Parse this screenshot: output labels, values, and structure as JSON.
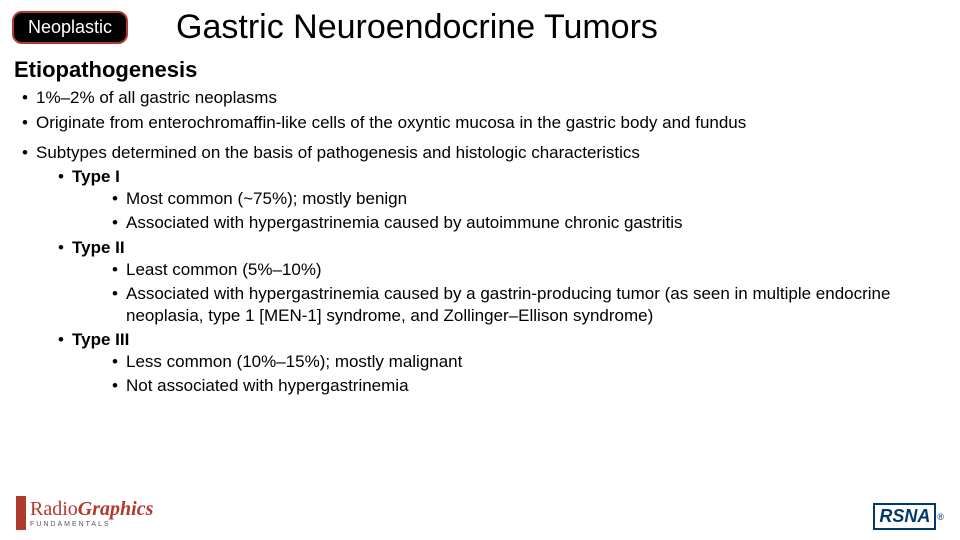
{
  "badge": {
    "text": "Neoplastic",
    "bg": "#000000",
    "border": "#b03a2e",
    "color": "#ffffff"
  },
  "title": "Gastric Neuroendocrine Tumors",
  "section_heading": "Etiopathogenesis",
  "bullets": {
    "b1": "1%–2% of all gastric neoplasms",
    "b2": "Originate from enterochromaffin-like cells of the oxyntic mucosa in the gastric body and fundus",
    "b3": "Subtypes determined on the basis of pathogenesis and histologic characteristics",
    "type1_label": "Type I",
    "type1_a": "Most common (~75%); mostly benign",
    "type1_b": "Associated with hypergastrinemia caused by autoimmune chronic gastritis",
    "type2_label": "Type II",
    "type2_a": "Least common (5%–10%)",
    "type2_b": "Associated with hypergastrinemia caused by a gastrin-producing tumor (as seen in multiple endocrine neoplasia, type 1 [MEN-1] syndrome, and Zollinger–Ellison syndrome)",
    "type3_label": "Type III",
    "type3_a": "Less common (10%–15%); mostly malignant",
    "type3_b": "Not associated with hypergastrinemia"
  },
  "logos": {
    "left_line1a": "Radio",
    "left_line1b": "Graphics",
    "left_sub": "FUNDAMENTALS",
    "right": "RSNA"
  },
  "styling": {
    "title_fontsize": 34,
    "heading_fontsize": 22,
    "body_fontsize": 17,
    "accent_red": "#b03a2e",
    "rsna_blue": "#003a6b",
    "background": "#ffffff",
    "slide_width": 960,
    "slide_height": 540
  }
}
